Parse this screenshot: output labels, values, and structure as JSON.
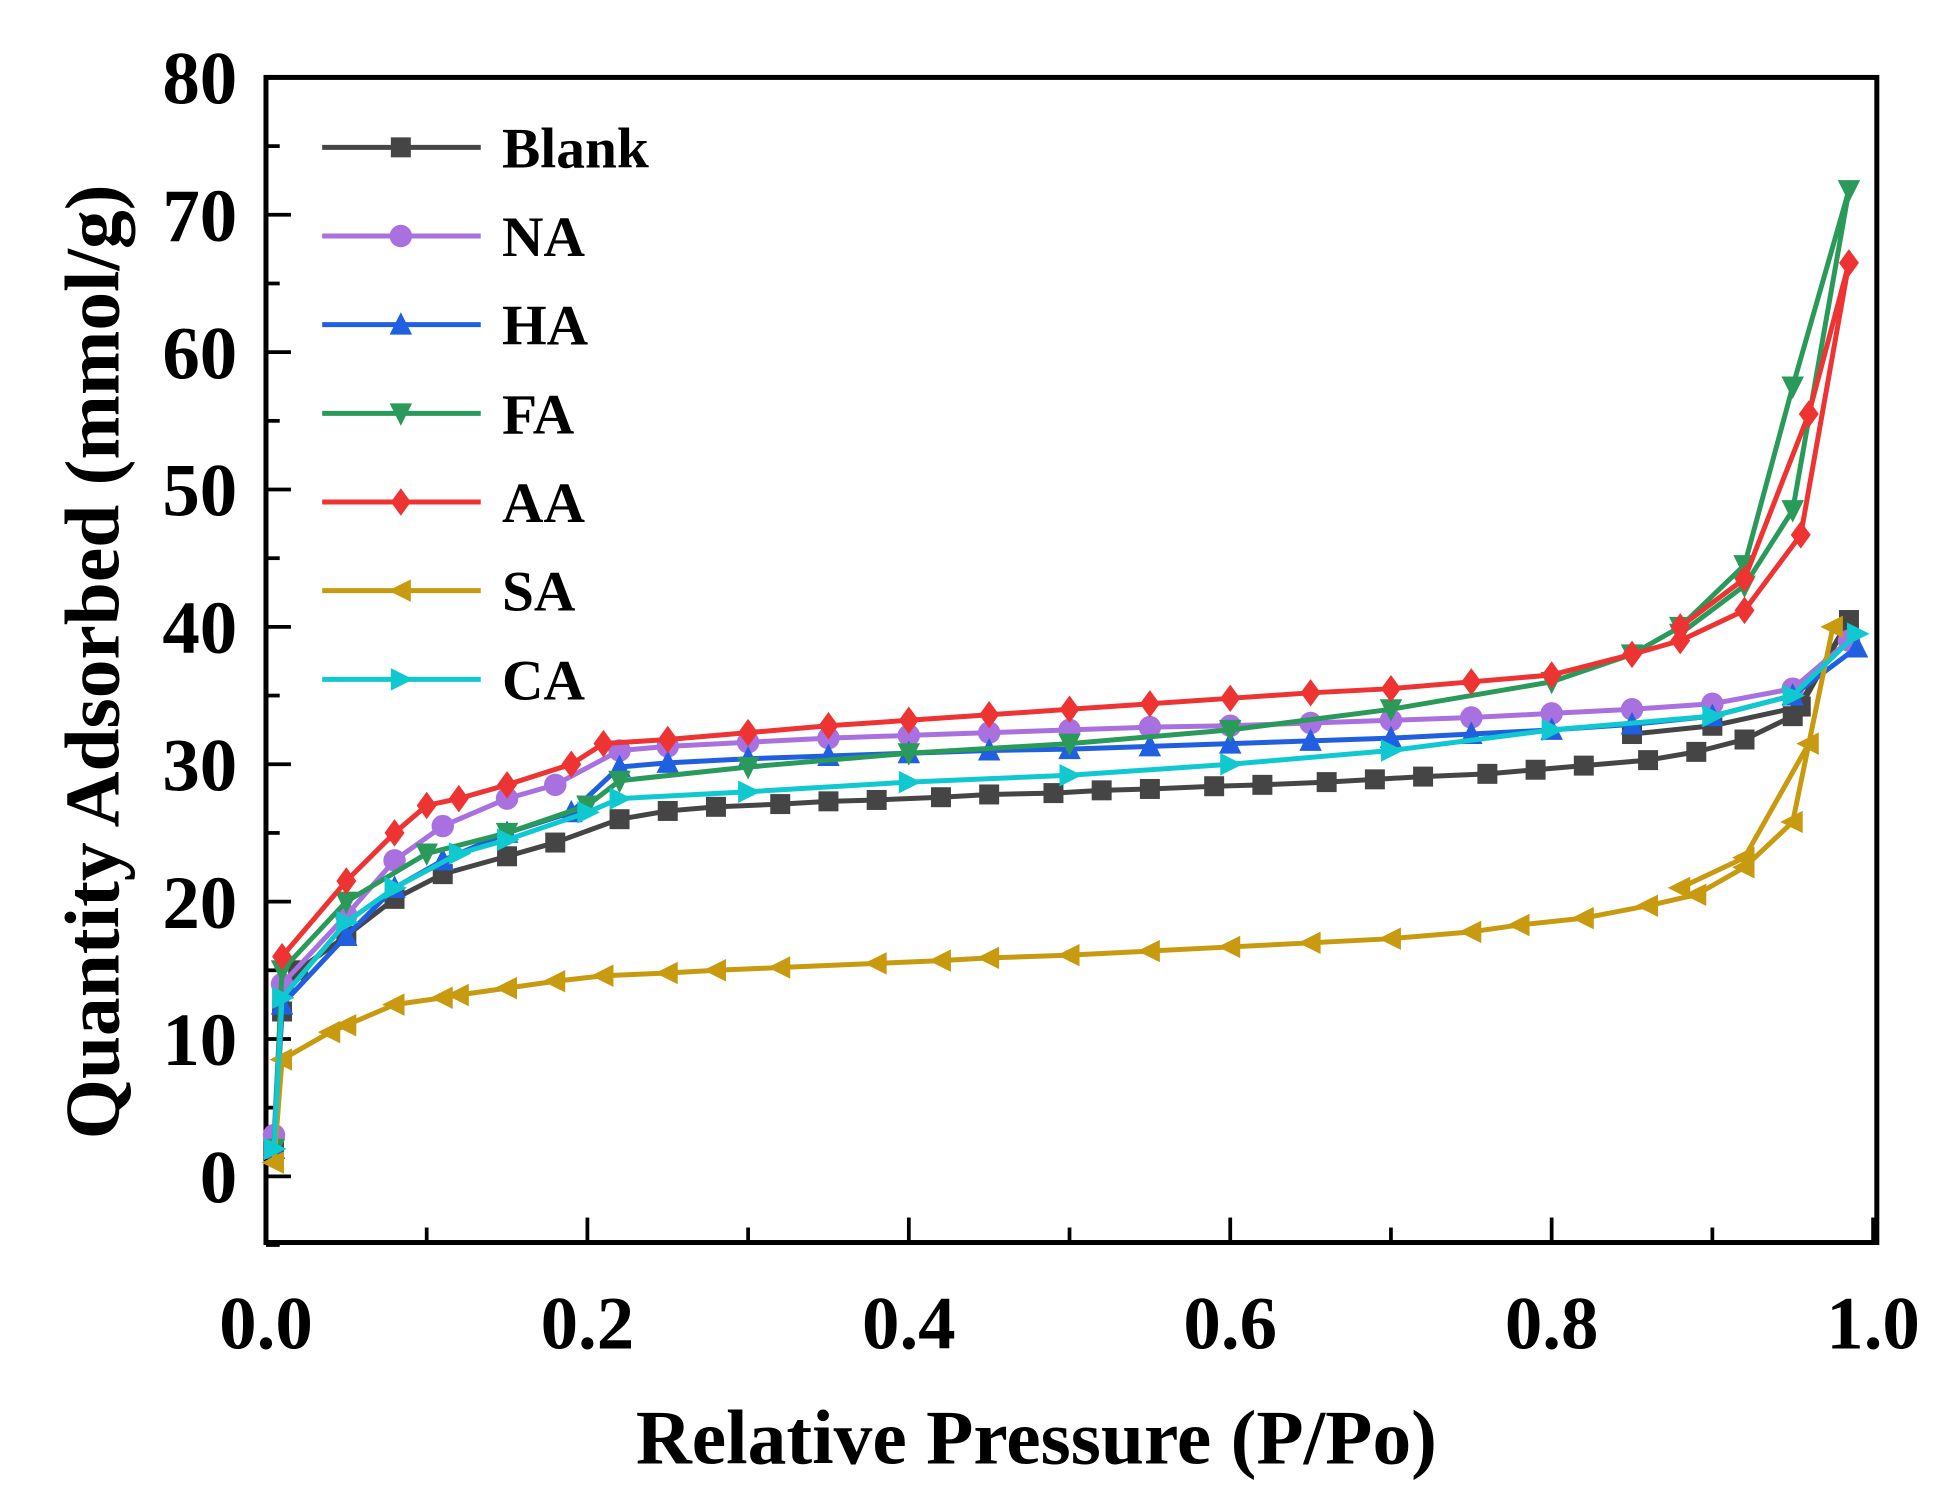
{
  "chart_data": {
    "type": "line",
    "title": "",
    "xlabel": "Relative Pressure (P/Po)",
    "ylabel": "Quantity Adsorbed (mmol/g)",
    "xlim": [
      0,
      1.0
    ],
    "ylim": [
      -5,
      80
    ],
    "xticks": [
      "0.0",
      "0.2",
      "0.4",
      "0.6",
      "0.8",
      "1.0"
    ],
    "yticks": [
      "0",
      "10",
      "20",
      "30",
      "40",
      "50",
      "60",
      "70",
      "80"
    ],
    "legend_position": "top-left",
    "grid": false,
    "series": [
      {
        "name": "Blank",
        "color": "#454545",
        "marker": "square",
        "points": [
          [
            0.005,
            2
          ],
          [
            0.01,
            12
          ],
          [
            0.02,
            15
          ],
          [
            0.05,
            17.5
          ],
          [
            0.08,
            20.2
          ],
          [
            0.11,
            22
          ],
          [
            0.15,
            23.3
          ],
          [
            0.18,
            24.3
          ],
          [
            0.22,
            26
          ],
          [
            0.25,
            26.6
          ],
          [
            0.28,
            26.9
          ],
          [
            0.32,
            27.1
          ],
          [
            0.35,
            27.3
          ],
          [
            0.38,
            27.4
          ],
          [
            0.42,
            27.6
          ],
          [
            0.45,
            27.8
          ],
          [
            0.49,
            27.9
          ],
          [
            0.52,
            28.1
          ],
          [
            0.55,
            28.2
          ],
          [
            0.59,
            28.4
          ],
          [
            0.62,
            28.5
          ],
          [
            0.66,
            28.7
          ],
          [
            0.69,
            28.9
          ],
          [
            0.72,
            29.1
          ],
          [
            0.76,
            29.3
          ],
          [
            0.79,
            29.6
          ],
          [
            0.82,
            29.9
          ],
          [
            0.86,
            30.3
          ],
          [
            0.89,
            30.9
          ],
          [
            0.92,
            31.8
          ],
          [
            0.95,
            33.5
          ],
          [
            0.985,
            40.5
          ],
          [
            0.955,
            34.2
          ],
          [
            0.9,
            32.8
          ],
          [
            0.85,
            32.2
          ]
        ]
      },
      {
        "name": "NA",
        "color": "#a971e0",
        "marker": "circle",
        "points": [
          [
            0.005,
            3
          ],
          [
            0.01,
            14
          ],
          [
            0.05,
            19
          ],
          [
            0.08,
            23
          ],
          [
            0.11,
            25.5
          ],
          [
            0.15,
            27.5
          ],
          [
            0.18,
            28.5
          ],
          [
            0.22,
            31
          ],
          [
            0.25,
            31.3
          ],
          [
            0.3,
            31.6
          ],
          [
            0.35,
            31.9
          ],
          [
            0.4,
            32.1
          ],
          [
            0.45,
            32.3
          ],
          [
            0.5,
            32.5
          ],
          [
            0.55,
            32.7
          ],
          [
            0.6,
            32.8
          ],
          [
            0.65,
            33
          ],
          [
            0.7,
            33.2
          ],
          [
            0.75,
            33.4
          ],
          [
            0.8,
            33.7
          ],
          [
            0.85,
            34
          ],
          [
            0.9,
            34.4
          ],
          [
            0.95,
            35.5
          ],
          [
            0.985,
            39
          ]
        ]
      },
      {
        "name": "HA",
        "color": "#1f5fe0",
        "marker": "triangle-up",
        "points": [
          [
            0.005,
            2
          ],
          [
            0.01,
            12.5
          ],
          [
            0.05,
            17.5
          ],
          [
            0.08,
            21
          ],
          [
            0.11,
            23
          ],
          [
            0.15,
            25
          ],
          [
            0.19,
            26.5
          ],
          [
            0.22,
            29.8
          ],
          [
            0.25,
            30.1
          ],
          [
            0.3,
            30.4
          ],
          [
            0.35,
            30.6
          ],
          [
            0.4,
            30.8
          ],
          [
            0.45,
            31
          ],
          [
            0.5,
            31.1
          ],
          [
            0.55,
            31.3
          ],
          [
            0.6,
            31.5
          ],
          [
            0.65,
            31.7
          ],
          [
            0.7,
            31.9
          ],
          [
            0.75,
            32.2
          ],
          [
            0.8,
            32.5
          ],
          [
            0.85,
            32.9
          ],
          [
            0.9,
            33.5
          ],
          [
            0.95,
            35
          ],
          [
            0.99,
            38.5
          ]
        ]
      },
      {
        "name": "FA",
        "color": "#2a9a5a",
        "marker": "triangle-down",
        "points": [
          [
            0.005,
            2
          ],
          [
            0.01,
            15
          ],
          [
            0.05,
            20
          ],
          [
            0.1,
            23.5
          ],
          [
            0.15,
            25
          ],
          [
            0.2,
            27
          ],
          [
            0.22,
            28.8
          ],
          [
            0.3,
            29.8
          ],
          [
            0.4,
            30.8
          ],
          [
            0.5,
            31.5
          ],
          [
            0.6,
            32.5
          ],
          [
            0.7,
            34
          ],
          [
            0.8,
            36
          ],
          [
            0.85,
            38
          ],
          [
            0.88,
            40
          ],
          [
            0.92,
            44.5
          ],
          [
            0.95,
            57.5
          ],
          [
            0.985,
            71.8
          ],
          [
            0.95,
            48.5
          ],
          [
            0.92,
            43
          ],
          [
            0.88,
            39.5
          ]
        ]
      },
      {
        "name": "AA",
        "color": "#ee3333",
        "marker": "diamond",
        "points": [
          [
            0.01,
            16
          ],
          [
            0.05,
            21.5
          ],
          [
            0.08,
            25
          ],
          [
            0.1,
            27
          ],
          [
            0.12,
            27.5
          ],
          [
            0.15,
            28.5
          ],
          [
            0.19,
            30
          ],
          [
            0.21,
            31.5
          ],
          [
            0.25,
            31.8
          ],
          [
            0.3,
            32.3
          ],
          [
            0.35,
            32.8
          ],
          [
            0.4,
            33.2
          ],
          [
            0.45,
            33.6
          ],
          [
            0.5,
            34
          ],
          [
            0.55,
            34.4
          ],
          [
            0.6,
            34.8
          ],
          [
            0.65,
            35.2
          ],
          [
            0.7,
            35.5
          ],
          [
            0.75,
            36
          ],
          [
            0.8,
            36.5
          ],
          [
            0.85,
            38
          ],
          [
            0.88,
            39
          ],
          [
            0.92,
            41.2
          ],
          [
            0.955,
            46.7
          ],
          [
            0.985,
            66.5
          ],
          [
            0.96,
            55.5
          ],
          [
            0.92,
            43.5
          ],
          [
            0.88,
            40
          ]
        ]
      },
      {
        "name": "SA",
        "color": "#c89a10",
        "marker": "triangle-left",
        "points": [
          [
            0.005,
            1
          ],
          [
            0.01,
            8.5
          ],
          [
            0.04,
            10.5
          ],
          [
            0.05,
            11
          ],
          [
            0.08,
            12.5
          ],
          [
            0.11,
            13
          ],
          [
            0.12,
            13.2
          ],
          [
            0.15,
            13.7
          ],
          [
            0.18,
            14.2
          ],
          [
            0.21,
            14.6
          ],
          [
            0.25,
            14.8
          ],
          [
            0.28,
            15
          ],
          [
            0.32,
            15.2
          ],
          [
            0.38,
            15.5
          ],
          [
            0.42,
            15.7
          ],
          [
            0.45,
            15.9
          ],
          [
            0.5,
            16.1
          ],
          [
            0.55,
            16.4
          ],
          [
            0.6,
            16.7
          ],
          [
            0.65,
            17
          ],
          [
            0.7,
            17.3
          ],
          [
            0.75,
            17.8
          ],
          [
            0.78,
            18.3
          ],
          [
            0.82,
            18.8
          ],
          [
            0.86,
            19.7
          ],
          [
            0.89,
            20.5
          ],
          [
            0.92,
            22.5
          ],
          [
            0.95,
            25.8
          ],
          [
            0.975,
            40
          ],
          [
            0.96,
            31.5
          ],
          [
            0.92,
            23.2
          ],
          [
            0.88,
            21
          ]
        ]
      },
      {
        "name": "CA",
        "color": "#10c8d0",
        "marker": "triangle-right",
        "points": [
          [
            0.005,
            2
          ],
          [
            0.01,
            13
          ],
          [
            0.05,
            18.5
          ],
          [
            0.08,
            21
          ],
          [
            0.12,
            23.5
          ],
          [
            0.15,
            24.5
          ],
          [
            0.2,
            26.5
          ],
          [
            0.22,
            27.5
          ],
          [
            0.3,
            28
          ],
          [
            0.4,
            28.7
          ],
          [
            0.5,
            29.2
          ],
          [
            0.6,
            30
          ],
          [
            0.7,
            31
          ],
          [
            0.8,
            32.5
          ],
          [
            0.9,
            33.5
          ],
          [
            0.95,
            35
          ],
          [
            0.99,
            39.5
          ]
        ]
      }
    ]
  }
}
